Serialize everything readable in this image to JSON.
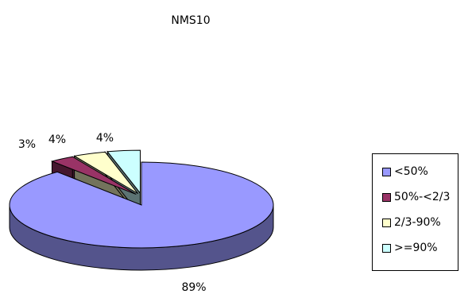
{
  "chart_data": {
    "type": "pie",
    "title": "NMS10",
    "three_d": true,
    "exploded": true,
    "legend_position": "right",
    "slices": [
      {
        "label": "<50%",
        "value": 89,
        "data_label": "89%",
        "color": "#9999FF"
      },
      {
        "label": "50%-<2/3",
        "value": 3,
        "data_label": "3%",
        "color": "#993366"
      },
      {
        "label": "2/3-90%",
        "value": 4,
        "data_label": "4%",
        "color": "#FFFFCC"
      },
      {
        "label": ">=90%",
        "value": 4,
        "data_label": "4%",
        "color": "#CCFFFF"
      }
    ]
  }
}
